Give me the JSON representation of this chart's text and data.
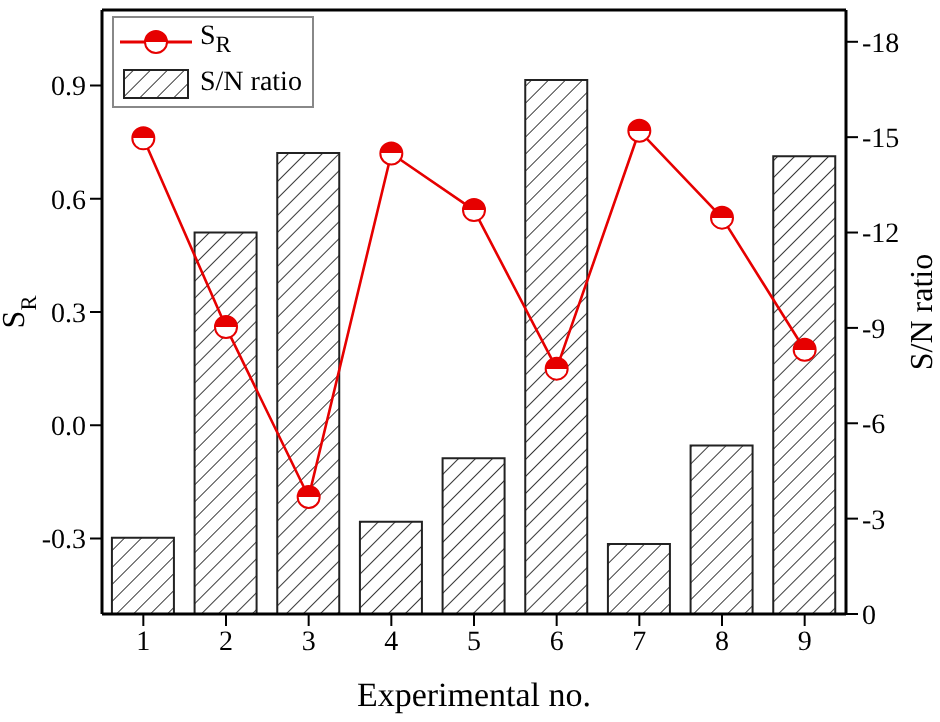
{
  "chart_data": {
    "type": "bar",
    "categories": [
      "1",
      "2",
      "3",
      "4",
      "5",
      "6",
      "7",
      "8",
      "9"
    ],
    "xlabel": "Experimental no.",
    "ylabel": "S$_{R}$",
    "y2label": "S/N ratio",
    "series": [
      {
        "name": "S$_{R}$",
        "type": "line",
        "color": "#e60000",
        "marker": "circle",
        "values": [
          0.76,
          0.26,
          -0.19,
          0.72,
          0.57,
          0.15,
          0.78,
          0.55,
          0.2
        ]
      },
      {
        "name": "S/N ratio",
        "axis": "y2",
        "color": "#222222",
        "values": [
          -2.4,
          -12.0,
          -14.5,
          -2.9,
          -4.9,
          -16.8,
          -2.2,
          -5.3,
          -14.4
        ]
      }
    ],
    "ylim": [
      -0.5,
      1.1
    ],
    "yticks": [
      -0.3,
      {
        "value": 0,
        "label": "0.0"
      },
      0.3,
      0.6,
      0.9
    ],
    "y2lim": [
      0,
      -19
    ],
    "y2ticks": [
      0,
      -3,
      -6,
      -9,
      -12,
      -15,
      -18
    ],
    "legend": "top left",
    "grid": false
  }
}
